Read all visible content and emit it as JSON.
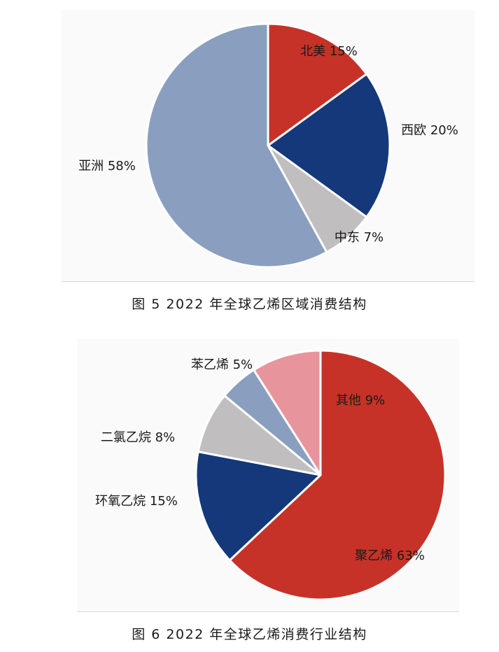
{
  "chart_data": [
    {
      "type": "pie",
      "labels": [
        "北美 15%",
        "西欧 20%",
        "中东 7%",
        "亚洲 58%"
      ],
      "categories": [
        "北美",
        "西欧",
        "中东",
        "亚洲"
      ],
      "values": [
        15,
        20,
        7,
        58
      ],
      "colors": [
        "#c63228",
        "#14387a",
        "#c0bebe",
        "#8a9fbf"
      ]
    },
    {
      "type": "pie",
      "labels": [
        "聚乙烯 63%",
        "环氧乙烷 15%",
        "二氯乙烷 8%",
        "苯乙烯 5%",
        "其他 9%"
      ],
      "categories": [
        "聚乙烯",
        "环氧乙烷",
        "二氯乙烷",
        "苯乙烯",
        "其他"
      ],
      "values": [
        63,
        15,
        8,
        5,
        9
      ],
      "colors": [
        "#c63228",
        "#14387a",
        "#c0bebe",
        "#8a9fbf",
        "#e8949c"
      ]
    }
  ],
  "captions": [
    "图 5  2022 年全球乙烯区域消费结构",
    "图 6  2022 年全球乙烯消费行业结构"
  ]
}
